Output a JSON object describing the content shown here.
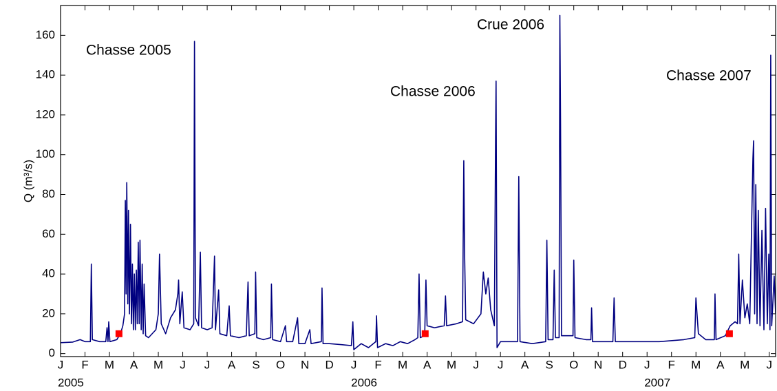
{
  "chart_data": {
    "type": "line",
    "y_label": "Q (m³/s)",
    "color": "#000080",
    "xlim": [
      0,
      29.26
    ],
    "ylim": [
      -1.5,
      175
    ],
    "yticks": [
      0,
      20,
      40,
      60,
      80,
      100,
      120,
      140,
      160
    ],
    "xticks": [
      {
        "value": 0,
        "label": "J"
      },
      {
        "value": 1,
        "label": "F"
      },
      {
        "value": 2,
        "label": "M"
      },
      {
        "value": 3,
        "label": "A"
      },
      {
        "value": 4,
        "label": "M"
      },
      {
        "value": 5,
        "label": "J"
      },
      {
        "value": 6,
        "label": "J"
      },
      {
        "value": 7,
        "label": "A"
      },
      {
        "value": 8,
        "label": "S"
      },
      {
        "value": 9,
        "label": "O"
      },
      {
        "value": 10,
        "label": "N"
      },
      {
        "value": 11,
        "label": "D"
      },
      {
        "value": 12,
        "label": "J"
      },
      {
        "value": 13,
        "label": "F"
      },
      {
        "value": 14,
        "label": "M"
      },
      {
        "value": 15,
        "label": "A"
      },
      {
        "value": 16,
        "label": "M"
      },
      {
        "value": 17,
        "label": "J"
      },
      {
        "value": 18,
        "label": "J"
      },
      {
        "value": 19,
        "label": "A"
      },
      {
        "value": 20,
        "label": "S"
      },
      {
        "value": 21,
        "label": "O"
      },
      {
        "value": 22,
        "label": "N"
      },
      {
        "value": 23,
        "label": "D"
      },
      {
        "value": 24,
        "label": "J"
      },
      {
        "value": 25,
        "label": "F"
      },
      {
        "value": 26,
        "label": "M"
      },
      {
        "value": 27,
        "label": "A"
      },
      {
        "value": 28,
        "label": "M"
      },
      {
        "value": 29,
        "label": "J"
      }
    ],
    "year_labels": [
      {
        "value": 0,
        "label": "2005"
      },
      {
        "value": 12,
        "label": "2006"
      },
      {
        "value": 24,
        "label": "2007"
      }
    ],
    "annotations": [
      "Chasse 2005",
      "Chasse 2006",
      "Crue 2006",
      "Chasse 2007"
    ],
    "x": [
      0,
      0.5,
      0.8,
      1.0,
      1.22,
      1.26,
      1.3,
      1.6,
      1.85,
      1.9,
      1.94,
      1.97,
      2.02,
      2.3,
      2.45,
      2.55,
      2.62,
      2.65,
      2.68,
      2.71,
      2.75,
      2.78,
      2.82,
      2.86,
      2.9,
      2.94,
      2.98,
      3.02,
      3.06,
      3.1,
      3.14,
      3.18,
      3.22,
      3.25,
      3.3,
      3.34,
      3.38,
      3.42,
      3.48,
      3.6,
      3.9,
      4.0,
      4.05,
      4.12,
      4.3,
      4.5,
      4.7,
      4.8,
      4.83,
      4.88,
      4.98,
      5.05,
      5.3,
      5.45,
      5.48,
      5.52,
      5.65,
      5.72,
      5.77,
      6.0,
      6.2,
      6.3,
      6.34,
      6.47,
      6.52,
      6.8,
      6.9,
      6.95,
      7.3,
      7.6,
      7.67,
      7.72,
      7.95,
      7.98,
      8.03,
      8.3,
      8.6,
      8.63,
      8.68,
      9.0,
      9.2,
      9.25,
      9.5,
      9.7,
      9.75,
      10.0,
      10.2,
      10.25,
      10.67,
      10.7,
      10.74,
      11.0,
      11.5,
      11.9,
      11.96,
      12.0,
      12.3,
      12.6,
      12.9,
      12.93,
      12.97,
      13.3,
      13.6,
      13.9,
      14.2,
      14.5,
      14.62,
      14.67,
      14.72,
      14.9,
      14.95,
      15.0,
      15.3,
      15.7,
      15.75,
      15.8,
      16.2,
      16.45,
      16.5,
      16.53,
      16.58,
      16.9,
      17.2,
      17.3,
      17.4,
      17.5,
      17.6,
      17.75,
      17.8,
      17.82,
      17.86,
      18.0,
      18.5,
      18.7,
      18.75,
      18.8,
      19.3,
      19.85,
      19.9,
      19.95,
      20.15,
      20.2,
      20.25,
      20.4,
      20.43,
      20.46,
      20.5,
      20.7,
      20.97,
      21.0,
      21.05,
      21.5,
      21.7,
      21.73,
      21.77,
      22.6,
      22.65,
      22.7,
      23.5,
      24.5,
      25.5,
      25.95,
      26.0,
      26.1,
      26.4,
      26.75,
      26.78,
      26.82,
      27.2,
      27.4,
      27.6,
      27.7,
      27.75,
      27.8,
      27.9,
      28.0,
      28.1,
      28.2,
      28.33,
      28.36,
      28.4,
      28.45,
      28.5,
      28.55,
      28.62,
      28.7,
      28.78,
      28.85,
      28.92,
      28.98,
      29.03,
      29.06,
      29.1,
      29.2,
      29.26
    ],
    "values": [
      5.5,
      5.8,
      7,
      6,
      6,
      45,
      7,
      6,
      6,
      13,
      6,
      16,
      6,
      7,
      10,
      14,
      20,
      77,
      30,
      86,
      25,
      72,
      20,
      65,
      15,
      45,
      12,
      40,
      12,
      42,
      15,
      56,
      15,
      57,
      12,
      45,
      10,
      35,
      9,
      8,
      12,
      20,
      50,
      15,
      10,
      18,
      22,
      30,
      37,
      15,
      31,
      13,
      12,
      15,
      157,
      18,
      14,
      51,
      13,
      12,
      13,
      49,
      12,
      32,
      10,
      9,
      24,
      9,
      8,
      9,
      36,
      9,
      10,
      41,
      8,
      7,
      8,
      35,
      7,
      6,
      14,
      6,
      6,
      18,
      5,
      5,
      12,
      5,
      6,
      33,
      5,
      5,
      4.5,
      4,
      16,
      2,
      5,
      3,
      6,
      19,
      3,
      5,
      4,
      6,
      5,
      7,
      8,
      40,
      8,
      9,
      37,
      14,
      13,
      14,
      29,
      14,
      15,
      16,
      97,
      52,
      17,
      15,
      20,
      41,
      30,
      38,
      22,
      14,
      109,
      137,
      3,
      6,
      6,
      6,
      89,
      6,
      5,
      6,
      57,
      7,
      7,
      42,
      8,
      8,
      170,
      116,
      9,
      9,
      9,
      47,
      8,
      7,
      7,
      23,
      6,
      6,
      28,
      6,
      6,
      6,
      7,
      8,
      28,
      10,
      7,
      7,
      30,
      7,
      9,
      14,
      16,
      15,
      50,
      15,
      37,
      18,
      25,
      15,
      98,
      107,
      20,
      85,
      15,
      72,
      14,
      62,
      12,
      73,
      15,
      50,
      12,
      150,
      14,
      39,
      20
    ],
    "markers": {
      "x": [
        2.39,
        14.92,
        27.37
      ],
      "values": [
        10,
        10,
        10
      ],
      "color": "#ff0000"
    }
  }
}
